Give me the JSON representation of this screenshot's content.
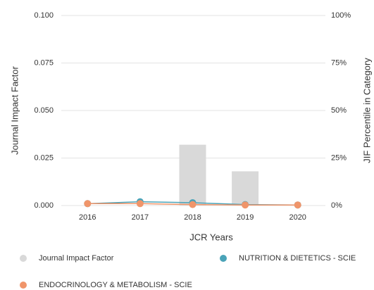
{
  "chart_data": {
    "type": "bar-line",
    "categories": [
      "2016",
      "2017",
      "2018",
      "2019",
      "2020"
    ],
    "xlabel": "JCR Years",
    "ylabel": "Journal Impact Factor",
    "y2label": "JIF Percentile in Category",
    "ylim": [
      0,
      0.1
    ],
    "yticks": [
      {
        "value": 0,
        "label": "0.000"
      },
      {
        "value": 0.025,
        "label": "0.025"
      },
      {
        "value": 0.05,
        "label": "0.050"
      },
      {
        "value": 0.075,
        "label": "0.075"
      },
      {
        "value": 0.1,
        "label": "0.100"
      }
    ],
    "y2lim": [
      0,
      100
    ],
    "y2ticks": [
      {
        "value": 0,
        "label": "0%"
      },
      {
        "value": 25,
        "label": "25%"
      },
      {
        "value": 50,
        "label": "50%"
      },
      {
        "value": 75,
        "label": "75%"
      },
      {
        "value": 100,
        "label": "100%"
      }
    ],
    "grid": true,
    "series": [
      {
        "name": "Journal Impact Factor",
        "type": "bar",
        "color": "#d9d9d9",
        "values": [
          0,
          0,
          0.032,
          0.018,
          0
        ]
      },
      {
        "name": "NUTRITION & DIETETICS - SCIE",
        "type": "line",
        "axis": "y2",
        "color": "#4aa3b8",
        "values": [
          1,
          2,
          1.5,
          0.5,
          0.3
        ]
      },
      {
        "name": "ENDOCRINOLOGY & METABOLISM - SCIE",
        "type": "line",
        "axis": "y2",
        "color": "#f0956a",
        "values": [
          1,
          1,
          0.5,
          0.3,
          0.3
        ]
      }
    ]
  }
}
